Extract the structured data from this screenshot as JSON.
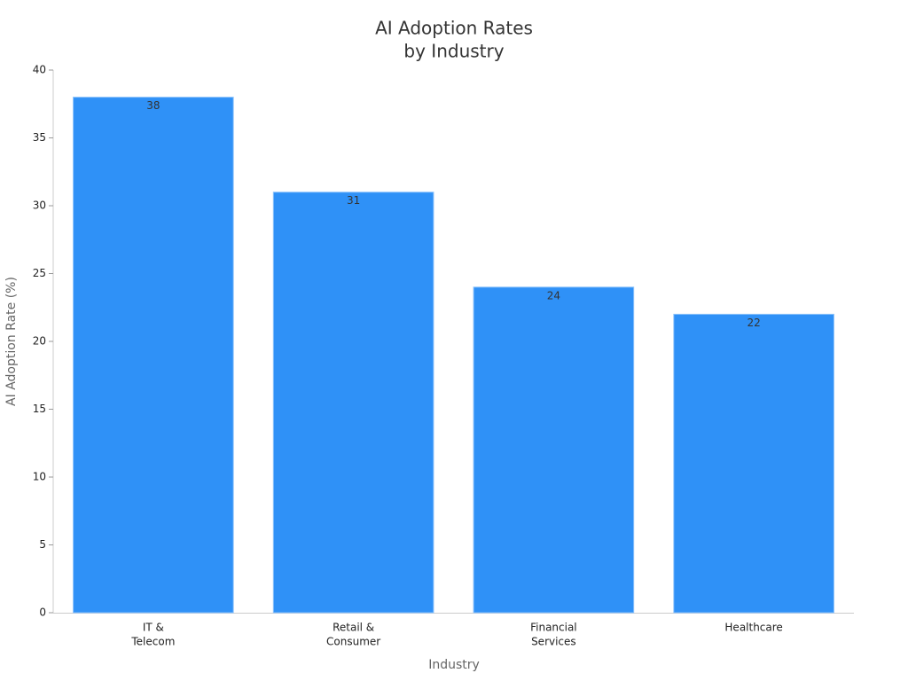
{
  "chart_data": {
    "type": "bar",
    "title": [
      "AI Adoption Rates",
      "by Industry"
    ],
    "x_label": "Industry",
    "y_label": "AI Adoption Rate (%)",
    "categories": [
      [
        "IT &",
        "Telecom"
      ],
      [
        "Retail &",
        "Consumer"
      ],
      [
        "Financial",
        "Services"
      ],
      [
        "Healthcare"
      ]
    ],
    "values": [
      38,
      31,
      24,
      22
    ],
    "color": "#2f91f7",
    "ylim": [
      0,
      40
    ],
    "yticks": [
      0,
      5,
      10,
      15,
      20,
      25,
      30,
      35,
      40
    ],
    "grid": false
  }
}
